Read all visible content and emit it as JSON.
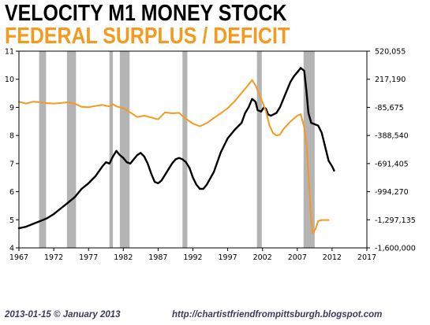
{
  "titles": {
    "line1": "VELOCITY M1 MONEY STOCK",
    "line2": "FEDERAL SURPLUS / DEFICIT"
  },
  "footer": {
    "left": "2013-01-15 © January 2013",
    "right": "http://chartistfriendfrompittsburgh.blogspot.com"
  },
  "colors": {
    "velocity": "#000000",
    "deficit": "#f39a1f",
    "recession": "#b4b4b4",
    "title_secondary": "#f39a1f"
  },
  "chart_data": {
    "type": "line",
    "title": "VELOCITY M1 MONEY STOCK",
    "subtitle": "FEDERAL SURPLUS / DEFICIT",
    "x_range": [
      1967,
      2017
    ],
    "x_ticks": [
      "1967",
      "1972",
      "1977",
      "1982",
      "1987",
      "1992",
      "1997",
      "2002",
      "2007",
      "2012",
      "2017"
    ],
    "y_left": {
      "range": [
        4,
        11
      ],
      "ticks": [
        "4",
        "5",
        "6",
        "7",
        "8",
        "9",
        "10",
        "11"
      ]
    },
    "y_right": {
      "range": [
        -1600000,
        520055
      ],
      "ticks": [
        "520,055",
        "217,190",
        "-85,675",
        "-388,540",
        "-691,405",
        "-994,270",
        "-1,297,135",
        "-1,600,000"
      ]
    },
    "grid": false,
    "legend": "none",
    "recessions": [
      [
        1969.9,
        1970.9
      ],
      [
        1973.9,
        1975.2
      ],
      [
        1980.0,
        1980.5
      ],
      [
        1981.5,
        1982.9
      ],
      [
        1990.5,
        1991.2
      ],
      [
        2001.2,
        2001.9
      ],
      [
        2007.9,
        2009.5
      ]
    ],
    "series": [
      {
        "axis": "left",
        "color": "#000000",
        "points": [
          [
            1967.0,
            4.7
          ],
          [
            1968.0,
            4.75
          ],
          [
            1969.0,
            4.85
          ],
          [
            1970.0,
            4.95
          ],
          [
            1971.0,
            5.05
          ],
          [
            1972.0,
            5.2
          ],
          [
            1973.0,
            5.4
          ],
          [
            1974.0,
            5.6
          ],
          [
            1975.0,
            5.8
          ],
          [
            1976.0,
            6.1
          ],
          [
            1977.0,
            6.3
          ],
          [
            1978.0,
            6.55
          ],
          [
            1979.0,
            6.9
          ],
          [
            1979.5,
            7.05
          ],
          [
            1980.0,
            7.0
          ],
          [
            1980.5,
            7.25
          ],
          [
            1981.0,
            7.45
          ],
          [
            1981.5,
            7.3
          ],
          [
            1982.0,
            7.2
          ],
          [
            1982.5,
            7.05
          ],
          [
            1983.0,
            7.0
          ],
          [
            1983.5,
            7.15
          ],
          [
            1984.0,
            7.3
          ],
          [
            1984.5,
            7.38
          ],
          [
            1985.0,
            7.25
          ],
          [
            1985.5,
            7.0
          ],
          [
            1986.0,
            6.65
          ],
          [
            1986.5,
            6.35
          ],
          [
            1987.0,
            6.3
          ],
          [
            1987.5,
            6.4
          ],
          [
            1988.0,
            6.6
          ],
          [
            1989.0,
            7.0
          ],
          [
            1989.5,
            7.15
          ],
          [
            1990.0,
            7.2
          ],
          [
            1990.5,
            7.15
          ],
          [
            1991.0,
            7.05
          ],
          [
            1991.5,
            6.85
          ],
          [
            1992.0,
            6.5
          ],
          [
            1992.5,
            6.25
          ],
          [
            1993.0,
            6.1
          ],
          [
            1993.5,
            6.1
          ],
          [
            1994.0,
            6.25
          ],
          [
            1995.0,
            6.7
          ],
          [
            1996.0,
            7.4
          ],
          [
            1997.0,
            7.9
          ],
          [
            1998.0,
            8.2
          ],
          [
            1999.0,
            8.45
          ],
          [
            1999.5,
            8.8
          ],
          [
            2000.0,
            9.0
          ],
          [
            2000.5,
            9.3
          ],
          [
            2001.0,
            9.2
          ],
          [
            2001.3,
            8.9
          ],
          [
            2001.8,
            8.85
          ],
          [
            2002.2,
            9.0
          ],
          [
            2002.5,
            8.95
          ],
          [
            2002.8,
            8.75
          ],
          [
            2003.2,
            8.7
          ],
          [
            2004.0,
            8.8
          ],
          [
            2004.5,
            9.0
          ],
          [
            2005.0,
            9.3
          ],
          [
            2005.5,
            9.6
          ],
          [
            2006.0,
            9.9
          ],
          [
            2006.5,
            10.1
          ],
          [
            2007.0,
            10.25
          ],
          [
            2007.5,
            10.4
          ],
          [
            2008.0,
            10.3
          ],
          [
            2008.3,
            9.6
          ],
          [
            2008.6,
            8.8
          ],
          [
            2009.0,
            8.45
          ],
          [
            2009.5,
            8.4
          ],
          [
            2010.0,
            8.35
          ],
          [
            2010.5,
            8.1
          ],
          [
            2011.0,
            7.6
          ],
          [
            2011.5,
            7.1
          ],
          [
            2012.0,
            6.9
          ],
          [
            2012.3,
            6.75
          ]
        ]
      },
      {
        "axis": "right",
        "color": "#f39a1f",
        "points": [
          [
            1967.0,
            -25000
          ],
          [
            1968.0,
            -45000
          ],
          [
            1969.0,
            -25000
          ],
          [
            1970.0,
            -30000
          ],
          [
            1971.0,
            -40000
          ],
          [
            1972.0,
            -45000
          ],
          [
            1973.0,
            -40000
          ],
          [
            1974.0,
            -30000
          ],
          [
            1975.0,
            -45000
          ],
          [
            1976.0,
            -80000
          ],
          [
            1977.0,
            -85000
          ],
          [
            1978.0,
            -70000
          ],
          [
            1979.0,
            -60000
          ],
          [
            1980.0,
            -75000
          ],
          [
            1980.5,
            -50000
          ],
          [
            1981.0,
            -75000
          ],
          [
            1982.0,
            -95000
          ],
          [
            1983.0,
            -140000
          ],
          [
            1984.0,
            -190000
          ],
          [
            1985.0,
            -175000
          ],
          [
            1986.0,
            -195000
          ],
          [
            1987.0,
            -215000
          ],
          [
            1988.0,
            -140000
          ],
          [
            1989.0,
            -150000
          ],
          [
            1990.0,
            -145000
          ],
          [
            1991.0,
            -210000
          ],
          [
            1992.0,
            -260000
          ],
          [
            1993.0,
            -290000
          ],
          [
            1994.0,
            -255000
          ],
          [
            1995.0,
            -200000
          ],
          [
            1996.0,
            -150000
          ],
          [
            1997.0,
            -95000
          ],
          [
            1998.0,
            -20000
          ],
          [
            1999.0,
            70000
          ],
          [
            2000.0,
            160000
          ],
          [
            2000.5,
            210000
          ],
          [
            2001.0,
            150000
          ],
          [
            2001.5,
            60000
          ],
          [
            2002.0,
            -30000
          ],
          [
            2002.5,
            -130000
          ],
          [
            2003.0,
            -280000
          ],
          [
            2003.5,
            -360000
          ],
          [
            2004.0,
            -390000
          ],
          [
            2004.5,
            -380000
          ],
          [
            2005.0,
            -320000
          ],
          [
            2006.0,
            -240000
          ],
          [
            2007.0,
            -175000
          ],
          [
            2007.5,
            -160000
          ],
          [
            2008.0,
            -300000
          ],
          [
            2008.3,
            -470000
          ],
          [
            2008.6,
            -800000
          ],
          [
            2008.9,
            -1200000
          ],
          [
            2009.2,
            -1440000
          ],
          [
            2009.6,
            -1400000
          ],
          [
            2010.0,
            -1310000
          ],
          [
            2010.5,
            -1300000
          ],
          [
            2011.0,
            -1300000
          ],
          [
            2011.5,
            -1300000
          ]
        ]
      }
    ]
  }
}
